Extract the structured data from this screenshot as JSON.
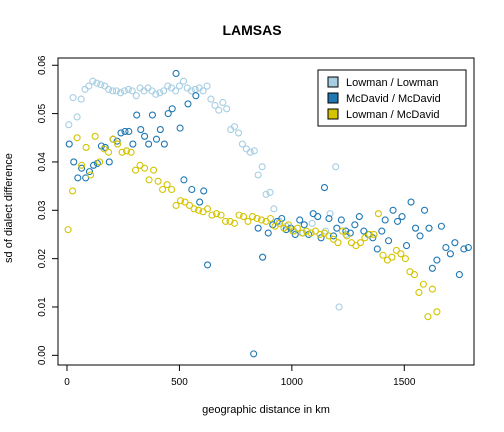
{
  "chart_data": {
    "type": "scatter",
    "title": "LAMSAS",
    "xlabel": "geographic distance in km",
    "ylabel": "sd of dialect difference",
    "xlim": [
      -40,
      1810
    ],
    "ylim": [
      -0.002,
      0.0615
    ],
    "x_ticks": [
      0,
      500,
      1000,
      1500
    ],
    "x_tick_labels": [
      "0",
      "500",
      "1000",
      "1500"
    ],
    "y_ticks": [
      0.0,
      0.01,
      0.02,
      0.03,
      0.04,
      0.05,
      0.06
    ],
    "y_tick_labels": [
      "0.00",
      "0.01",
      "0.02",
      "0.03",
      "0.04",
      "0.05",
      "0.06"
    ],
    "grid": false,
    "legend_position": "top-right",
    "series": [
      {
        "name": "Lowman / Lowman",
        "color": "#a6cee3",
        "points": [
          [
            8,
            0.0477
          ],
          [
            27,
            0.0533
          ],
          [
            45,
            0.0493
          ],
          [
            63,
            0.053
          ],
          [
            80,
            0.055
          ],
          [
            97,
            0.0557
          ],
          [
            115,
            0.0567
          ],
          [
            133,
            0.0563
          ],
          [
            150,
            0.056
          ],
          [
            168,
            0.0557
          ],
          [
            185,
            0.055
          ],
          [
            203,
            0.0547
          ],
          [
            220,
            0.0547
          ],
          [
            238,
            0.0543
          ],
          [
            255,
            0.0547
          ],
          [
            273,
            0.055
          ],
          [
            290,
            0.0547
          ],
          [
            308,
            0.0537
          ],
          [
            325,
            0.0553
          ],
          [
            343,
            0.0547
          ],
          [
            360,
            0.0553
          ],
          [
            378,
            0.0547
          ],
          [
            395,
            0.054
          ],
          [
            413,
            0.0543
          ],
          [
            430,
            0.0547
          ],
          [
            448,
            0.0557
          ],
          [
            465,
            0.0553
          ],
          [
            483,
            0.0547
          ],
          [
            500,
            0.0557
          ],
          [
            518,
            0.0567
          ],
          [
            535,
            0.0553
          ],
          [
            553,
            0.0547
          ],
          [
            570,
            0.055
          ],
          [
            588,
            0.0553
          ],
          [
            605,
            0.0547
          ],
          [
            623,
            0.0557
          ],
          [
            640,
            0.053
          ],
          [
            658,
            0.0517
          ],
          [
            675,
            0.0507
          ],
          [
            693,
            0.0523
          ],
          [
            710,
            0.051
          ],
          [
            728,
            0.0467
          ],
          [
            745,
            0.0473
          ],
          [
            763,
            0.046
          ],
          [
            780,
            0.0437
          ],
          [
            798,
            0.0427
          ],
          [
            815,
            0.042
          ],
          [
            833,
            0.0423
          ],
          [
            850,
            0.0373
          ],
          [
            868,
            0.039
          ],
          [
            885,
            0.0333
          ],
          [
            903,
            0.0337
          ],
          [
            920,
            0.0303
          ],
          [
            945,
            0.0277
          ],
          [
            975,
            0.0267
          ],
          [
            1010,
            0.0257
          ],
          [
            1050,
            0.0253
          ],
          [
            1090,
            0.0273
          ],
          [
            1150,
            0.0257
          ],
          [
            1170,
            0.0293
          ],
          [
            1195,
            0.039
          ],
          [
            1210,
            0.01
          ],
          [
            1240,
            0.025
          ]
        ]
      },
      {
        "name": "McDavid / McDavid",
        "color": "#1f78b4",
        "points": [
          [
            10,
            0.0437
          ],
          [
            30,
            0.04
          ],
          [
            48,
            0.0367
          ],
          [
            65,
            0.0387
          ],
          [
            83,
            0.0367
          ],
          [
            100,
            0.038
          ],
          [
            118,
            0.0393
          ],
          [
            135,
            0.0397
          ],
          [
            153,
            0.0433
          ],
          [
            170,
            0.043
          ],
          [
            188,
            0.04
          ],
          [
            205,
            0.0447
          ],
          [
            223,
            0.0443
          ],
          [
            240,
            0.046
          ],
          [
            258,
            0.0463
          ],
          [
            275,
            0.0463
          ],
          [
            293,
            0.0437
          ],
          [
            310,
            0.0497
          ],
          [
            328,
            0.0467
          ],
          [
            345,
            0.0453
          ],
          [
            363,
            0.0437
          ],
          [
            380,
            0.0497
          ],
          [
            398,
            0.0447
          ],
          [
            415,
            0.0467
          ],
          [
            433,
            0.0437
          ],
          [
            450,
            0.05
          ],
          [
            468,
            0.051
          ],
          [
            485,
            0.0583
          ],
          [
            503,
            0.047
          ],
          [
            520,
            0.0363
          ],
          [
            538,
            0.052
          ],
          [
            555,
            0.0343
          ],
          [
            573,
            0.0537
          ],
          [
            590,
            0.0317
          ],
          [
            608,
            0.034
          ],
          [
            625,
            0.0187
          ],
          [
            830,
            0.0003
          ],
          [
            850,
            0.0263
          ],
          [
            870,
            0.0203
          ],
          [
            895,
            0.0253
          ],
          [
            915,
            0.027
          ],
          [
            935,
            0.0277
          ],
          [
            955,
            0.0283
          ],
          [
            975,
            0.026
          ],
          [
            995,
            0.0263
          ],
          [
            1015,
            0.025
          ],
          [
            1035,
            0.028
          ],
          [
            1055,
            0.027
          ],
          [
            1075,
            0.025
          ],
          [
            1095,
            0.0293
          ],
          [
            1115,
            0.0287
          ],
          [
            1130,
            0.0243
          ],
          [
            1145,
            0.0347
          ],
          [
            1165,
            0.0283
          ],
          [
            1185,
            0.0247
          ],
          [
            1200,
            0.0263
          ],
          [
            1220,
            0.028
          ],
          [
            1240,
            0.0257
          ],
          [
            1260,
            0.0253
          ],
          [
            1280,
            0.027
          ],
          [
            1300,
            0.0287
          ],
          [
            1320,
            0.0257
          ],
          [
            1340,
            0.025
          ],
          [
            1360,
            0.0243
          ],
          [
            1380,
            0.022
          ],
          [
            1400,
            0.0257
          ],
          [
            1415,
            0.028
          ],
          [
            1430,
            0.0237
          ],
          [
            1450,
            0.03
          ],
          [
            1470,
            0.0277
          ],
          [
            1490,
            0.0287
          ],
          [
            1510,
            0.0227
          ],
          [
            1530,
            0.0317
          ],
          [
            1550,
            0.0263
          ],
          [
            1570,
            0.0247
          ],
          [
            1590,
            0.03
          ],
          [
            1610,
            0.0263
          ],
          [
            1625,
            0.018
          ],
          [
            1645,
            0.0197
          ],
          [
            1665,
            0.0267
          ],
          [
            1685,
            0.0223
          ],
          [
            1705,
            0.021
          ],
          [
            1725,
            0.0233
          ],
          [
            1745,
            0.0167
          ],
          [
            1765,
            0.022
          ],
          [
            1785,
            0.0223
          ]
        ]
      },
      {
        "name": "Lowman / McDavid",
        "color": "#d4c400",
        "points": [
          [
            5,
            0.026
          ],
          [
            25,
            0.034
          ],
          [
            45,
            0.045
          ],
          [
            65,
            0.0393
          ],
          [
            85,
            0.043
          ],
          [
            105,
            0.0373
          ],
          [
            125,
            0.0453
          ],
          [
            145,
            0.04
          ],
          [
            165,
            0.0427
          ],
          [
            185,
            0.042
          ],
          [
            205,
            0.0447
          ],
          [
            225,
            0.0437
          ],
          [
            245,
            0.042
          ],
          [
            265,
            0.0423
          ],
          [
            285,
            0.042
          ],
          [
            305,
            0.0383
          ],
          [
            325,
            0.0393
          ],
          [
            345,
            0.0387
          ],
          [
            365,
            0.0363
          ],
          [
            385,
            0.0383
          ],
          [
            405,
            0.036
          ],
          [
            425,
            0.0343
          ],
          [
            445,
            0.0353
          ],
          [
            465,
            0.0343
          ],
          [
            485,
            0.031
          ],
          [
            505,
            0.032
          ],
          [
            525,
            0.0317
          ],
          [
            545,
            0.031
          ],
          [
            565,
            0.0303
          ],
          [
            585,
            0.03
          ],
          [
            605,
            0.0297
          ],
          [
            625,
            0.0303
          ],
          [
            645,
            0.029
          ],
          [
            665,
            0.0293
          ],
          [
            685,
            0.029
          ],
          [
            705,
            0.0277
          ],
          [
            725,
            0.0277
          ],
          [
            745,
            0.0273
          ],
          [
            765,
            0.029
          ],
          [
            785,
            0.0287
          ],
          [
            805,
            0.0277
          ],
          [
            825,
            0.0287
          ],
          [
            845,
            0.0283
          ],
          [
            865,
            0.028
          ],
          [
            885,
            0.0277
          ],
          [
            905,
            0.0283
          ],
          [
            925,
            0.0267
          ],
          [
            945,
            0.0273
          ],
          [
            965,
            0.0263
          ],
          [
            985,
            0.027
          ],
          [
            1005,
            0.0257
          ],
          [
            1025,
            0.0263
          ],
          [
            1045,
            0.0253
          ],
          [
            1065,
            0.0257
          ],
          [
            1085,
            0.0253
          ],
          [
            1105,
            0.0257
          ],
          [
            1125,
            0.025
          ],
          [
            1145,
            0.0253
          ],
          [
            1165,
            0.0247
          ],
          [
            1185,
            0.024
          ],
          [
            1205,
            0.0233
          ],
          [
            1225,
            0.0257
          ],
          [
            1245,
            0.0247
          ],
          [
            1265,
            0.0233
          ],
          [
            1285,
            0.0227
          ],
          [
            1305,
            0.0233
          ],
          [
            1325,
            0.0243
          ],
          [
            1345,
            0.025
          ],
          [
            1365,
            0.025
          ],
          [
            1385,
            0.0293
          ],
          [
            1405,
            0.0207
          ],
          [
            1425,
            0.0197
          ],
          [
            1445,
            0.0203
          ],
          [
            1465,
            0.0217
          ],
          [
            1485,
            0.021
          ],
          [
            1505,
            0.02
          ],
          [
            1525,
            0.0173
          ],
          [
            1545,
            0.0167
          ],
          [
            1565,
            0.013
          ],
          [
            1585,
            0.0147
          ],
          [
            1605,
            0.008
          ],
          [
            1625,
            0.0137
          ],
          [
            1645,
            0.009
          ]
        ]
      }
    ]
  }
}
